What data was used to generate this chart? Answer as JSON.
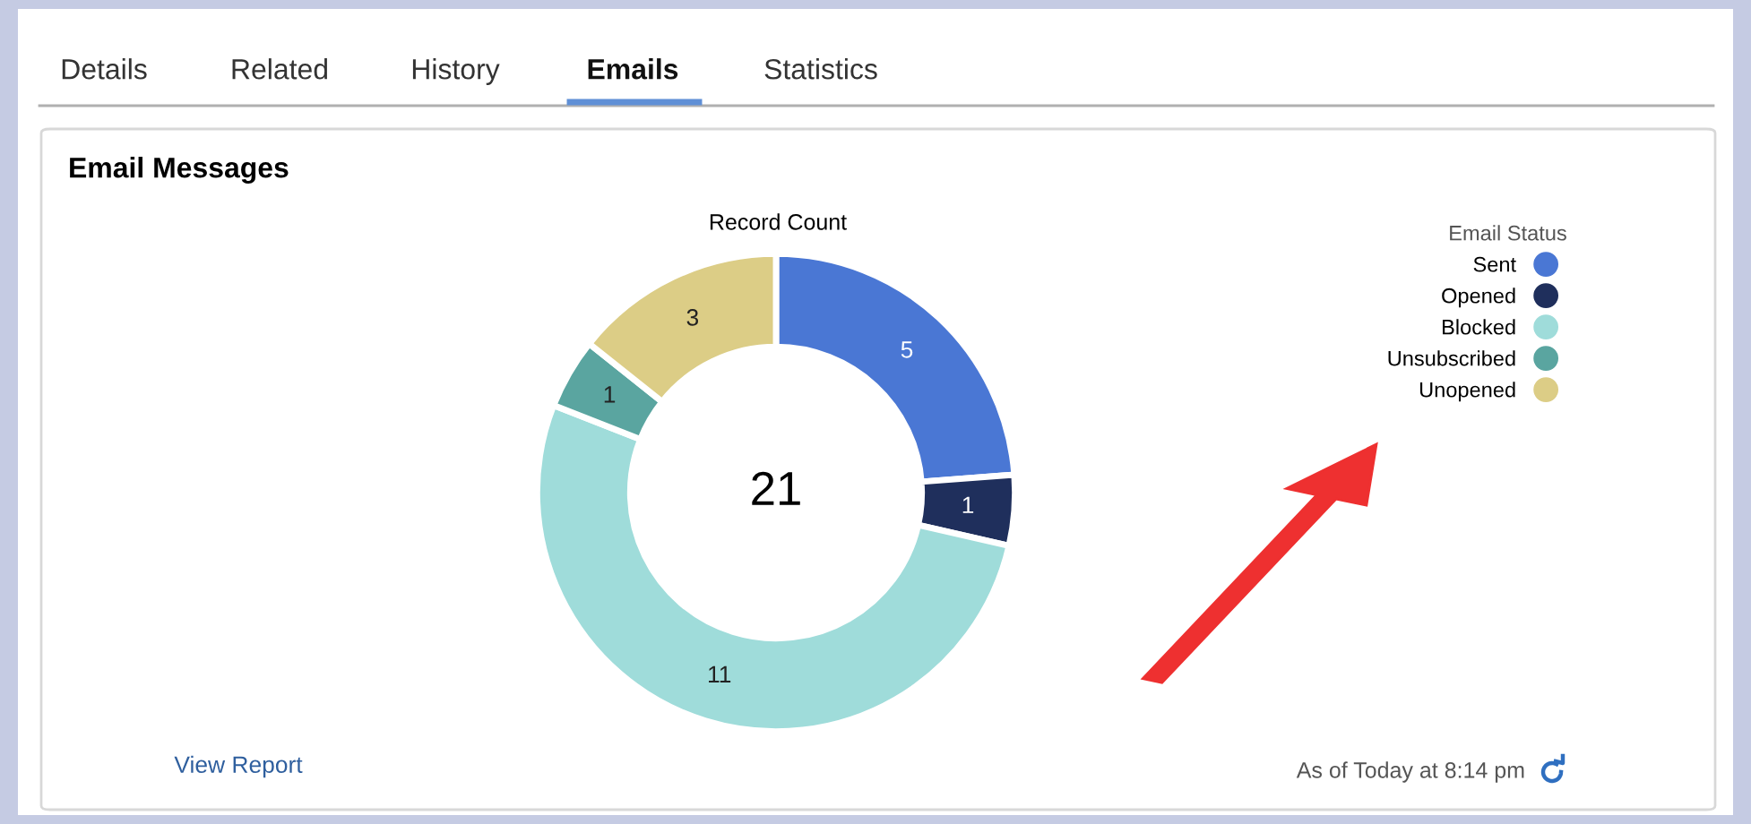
{
  "chart_data": {
    "type": "donut",
    "title": "Email Messages",
    "subtitle": "Record Count",
    "legend_title": "Email Status",
    "categories": [
      "Sent",
      "Opened",
      "Blocked",
      "Unsubscribed",
      "Unopened"
    ],
    "values": [
      5,
      1,
      11,
      1,
      3
    ],
    "colors": [
      "#4a77d4",
      "#1f2f5c",
      "#9fdcda",
      "#5aa5a0",
      "#dccd86"
    ],
    "data_labels": true,
    "legend": "top right",
    "annotations": [
      "Details",
      "Related",
      "History",
      "Emails",
      "Statistics",
      "21",
      "View Report",
      "As of Today at 8:14 pm"
    ]
  }
}
